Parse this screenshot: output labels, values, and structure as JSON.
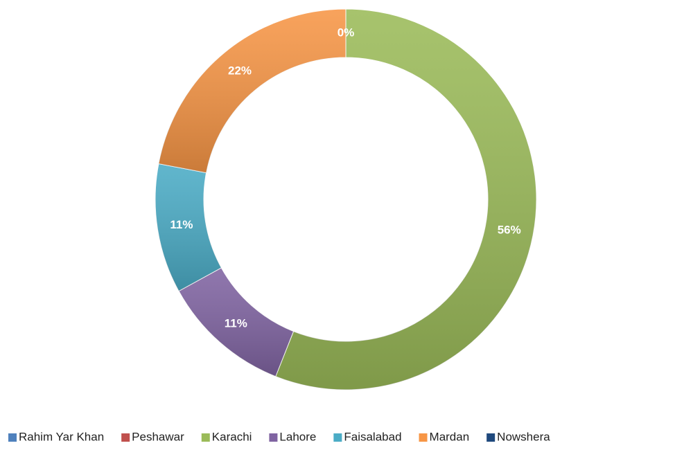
{
  "chart_data": {
    "type": "donut",
    "categories": [
      "Rahim Yar Khan",
      "Peshawar",
      "Karachi",
      "Lahore",
      "Faisalabad",
      "Mardan",
      "Nowshera"
    ],
    "values": [
      0,
      0,
      56,
      11,
      11,
      22,
      0
    ],
    "value_labels": [
      null,
      null,
      "56%",
      "11%",
      "11%",
      "22%",
      "0%"
    ],
    "colors": [
      "#4f81bd",
      "#c0504d",
      "#9bbb59",
      "#8064a2",
      "#4bacc6",
      "#f79646",
      "#1f497d"
    ],
    "legend": "bottom"
  }
}
